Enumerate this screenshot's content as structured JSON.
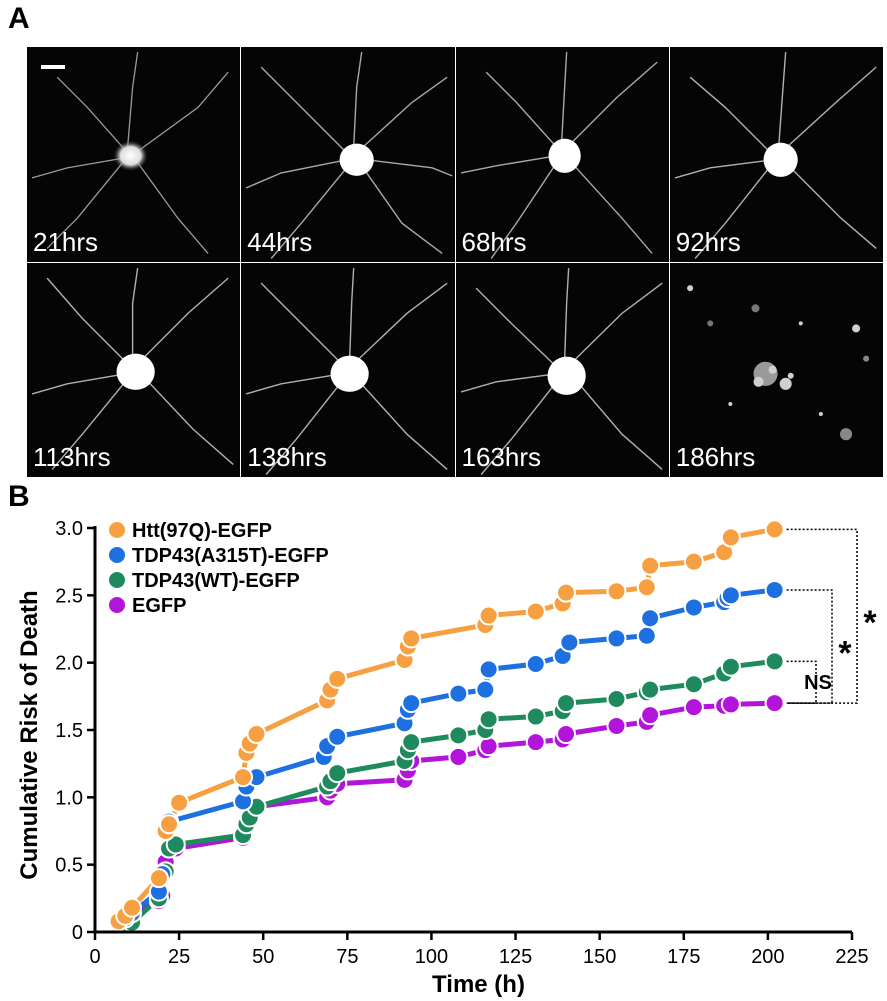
{
  "panel_a": {
    "letter": "A",
    "timepoints": [
      "21hrs",
      "44hrs",
      "68hrs",
      "92hrs",
      "113hrs",
      "138hrs",
      "163hrs",
      "186hrs"
    ]
  },
  "panel_b": {
    "letter": "B"
  },
  "chart_data": {
    "type": "line",
    "xlabel": "Time (h)",
    "ylabel": "Cumulative Risk of Death",
    "xlim": [
      0,
      225
    ],
    "ylim": [
      0,
      3.0
    ],
    "xticks": [
      0,
      25,
      50,
      75,
      100,
      125,
      150,
      175,
      200,
      225
    ],
    "yticks": [
      0,
      0.5,
      1.0,
      1.5,
      2.0,
      2.5,
      3.0
    ],
    "ytick_labels": [
      "0",
      "0.5",
      "1.0",
      "1.5",
      "2.0",
      "2.5",
      "3.0"
    ],
    "legend_position": "top-left",
    "series": [
      {
        "name": "Htt(97Q)-EGFP",
        "color": "#f7a042",
        "x": [
          7,
          9,
          11,
          19,
          21,
          22,
          25,
          44,
          45,
          46,
          48,
          69,
          70,
          72,
          92,
          93,
          94,
          116,
          117,
          131,
          139,
          140,
          155,
          164,
          165,
          178,
          187,
          189,
          202
        ],
        "y": [
          0.08,
          0.12,
          0.18,
          0.4,
          0.75,
          0.8,
          0.96,
          1.15,
          1.33,
          1.4,
          1.47,
          1.72,
          1.8,
          1.88,
          2.02,
          2.12,
          2.18,
          2.28,
          2.35,
          2.38,
          2.44,
          2.52,
          2.53,
          2.56,
          2.72,
          2.75,
          2.82,
          2.93,
          2.99
        ]
      },
      {
        "name": "TDP43(A315T)-EGFP",
        "color": "#1e6fe0",
        "x": [
          7,
          9,
          11,
          19,
          20,
          21,
          22,
          44,
          45,
          48,
          68,
          69,
          72,
          92,
          93,
          94,
          108,
          116,
          117,
          131,
          139,
          141,
          155,
          164,
          165,
          178,
          187,
          188,
          189,
          202
        ],
        "y": [
          0.08,
          0.1,
          0.14,
          0.3,
          0.43,
          0.75,
          0.82,
          0.97,
          1.08,
          1.15,
          1.3,
          1.38,
          1.45,
          1.55,
          1.65,
          1.7,
          1.77,
          1.8,
          1.95,
          1.99,
          2.05,
          2.15,
          2.18,
          2.2,
          2.33,
          2.41,
          2.45,
          2.48,
          2.5,
          2.54
        ]
      },
      {
        "name": "TDP43(WT)-EGFP",
        "color": "#1f8a5e",
        "x": [
          7,
          9,
          11,
          19,
          21,
          22,
          24,
          44,
          45,
          46,
          48,
          69,
          70,
          72,
          92,
          93,
          94,
          108,
          116,
          117,
          131,
          139,
          140,
          155,
          164,
          165,
          178,
          187,
          189,
          202
        ],
        "y": [
          0.06,
          0.07,
          0.07,
          0.25,
          0.45,
          0.62,
          0.65,
          0.72,
          0.8,
          0.85,
          0.93,
          1.08,
          1.12,
          1.18,
          1.27,
          1.35,
          1.41,
          1.46,
          1.5,
          1.58,
          1.6,
          1.64,
          1.7,
          1.73,
          1.78,
          1.8,
          1.84,
          1.92,
          1.97,
          2.01
        ]
      },
      {
        "name": "EGFP",
        "color": "#b314d9",
        "x": [
          7,
          9,
          11,
          19,
          20,
          21,
          24,
          44,
          45,
          46,
          48,
          69,
          70,
          72,
          92,
          93,
          94,
          108,
          116,
          117,
          131,
          139,
          140,
          155,
          164,
          165,
          178,
          187,
          189,
          202
        ],
        "y": [
          0.05,
          0.09,
          0.14,
          0.23,
          0.27,
          0.52,
          0.62,
          0.7,
          0.8,
          0.86,
          0.93,
          1.0,
          1.05,
          1.1,
          1.13,
          1.2,
          1.27,
          1.3,
          1.35,
          1.38,
          1.41,
          1.43,
          1.47,
          1.53,
          1.56,
          1.61,
          1.67,
          1.68,
          1.69,
          1.7
        ]
      }
    ],
    "annotations": [
      {
        "text": "*",
        "between": [
          "Htt(97Q)-EGFP",
          "EGFP"
        ]
      },
      {
        "text": "*",
        "between": [
          "TDP43(A315T)-EGFP",
          "EGFP"
        ]
      },
      {
        "text": "NS",
        "between": [
          "TDP43(WT)-EGFP",
          "EGFP"
        ]
      }
    ]
  }
}
